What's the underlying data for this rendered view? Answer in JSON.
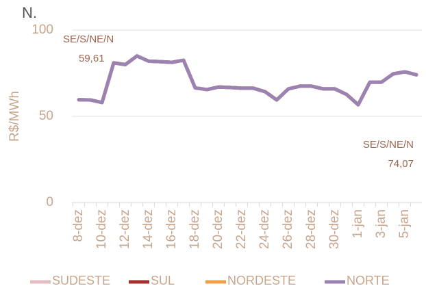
{
  "chart_data": {
    "type": "line",
    "title": "N.",
    "y_label": "R$/MWh",
    "categories": [
      "8-dez",
      null,
      "10-dez",
      null,
      "12-dez",
      null,
      "14-dez",
      null,
      "16-dez",
      null,
      "18-dez",
      null,
      "20-dez",
      null,
      "22-dez",
      null,
      "24-dez",
      null,
      "26-dez",
      null,
      "28-dez",
      null,
      "30-dez",
      null,
      "1-jan",
      null,
      "3-jan",
      null,
      "5-jan",
      null
    ],
    "series": [
      {
        "name": "SUDESTE",
        "color": "#e6bcc2",
        "values": [
          59.61,
          59.5,
          58,
          81,
          80,
          85,
          82,
          81.7,
          81.3,
          82.5,
          66.5,
          65.5,
          67,
          66.7,
          66.3,
          66.3,
          64.3,
          59.5,
          65.9,
          67.5,
          67.5,
          65.9,
          65.9,
          62.7,
          56.7,
          69.8,
          69.8,
          74.6,
          75.8,
          74.07
        ]
      },
      {
        "name": "SUL",
        "color": "#a3302d",
        "values": [
          59.61,
          59.5,
          58,
          81,
          80,
          85,
          82,
          81.7,
          81.3,
          82.5,
          66.5,
          65.5,
          67,
          66.7,
          66.3,
          66.3,
          64.3,
          59.5,
          65.9,
          67.5,
          67.5,
          65.9,
          65.9,
          62.7,
          56.7,
          69.8,
          69.8,
          74.6,
          75.8,
          74.07
        ]
      },
      {
        "name": "NORDESTE",
        "color": "#f0a04b",
        "values": [
          59.61,
          59.5,
          58,
          81,
          80,
          85,
          82,
          81.7,
          81.3,
          82.5,
          66.5,
          65.5,
          67,
          66.7,
          66.3,
          66.3,
          64.3,
          59.5,
          65.9,
          67.5,
          67.5,
          65.9,
          65.9,
          62.7,
          56.7,
          69.8,
          69.8,
          74.6,
          75.8,
          74.07
        ]
      },
      {
        "name": "NORTE",
        "color": "#9a82b2",
        "values": [
          59.61,
          59.5,
          58,
          81,
          80,
          85,
          82,
          81.7,
          81.3,
          82.5,
          66.5,
          65.5,
          67,
          66.7,
          66.3,
          66.3,
          64.3,
          59.5,
          65.9,
          67.5,
          67.5,
          65.9,
          65.9,
          62.7,
          56.7,
          69.8,
          69.8,
          74.6,
          75.8,
          74.07
        ]
      }
    ],
    "annotations": [
      {
        "text": "SE/S/NE/N",
        "value": "59,61"
      },
      {
        "text": "SE/S/NE/N",
        "value": "74,07"
      }
    ],
    "ylim": [
      0,
      100
    ],
    "yticks": [
      0,
      50,
      100
    ],
    "grid": true
  }
}
